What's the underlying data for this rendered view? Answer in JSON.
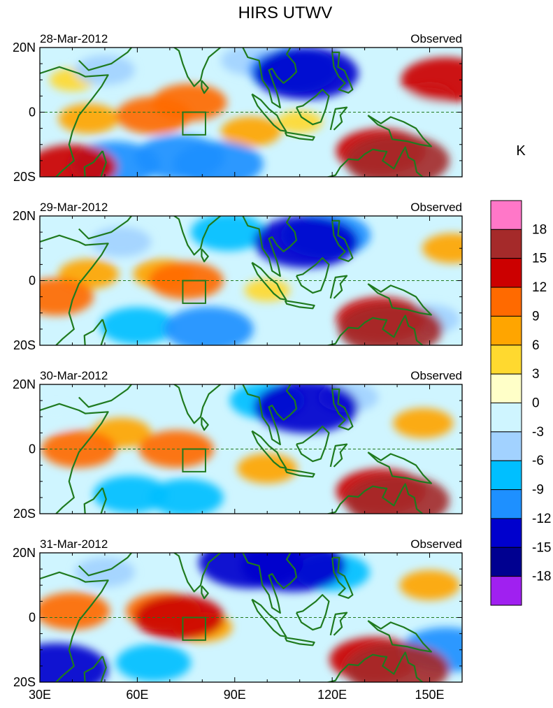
{
  "chart_data": {
    "type": "heatmap",
    "title": "HIRS UTWV",
    "colorbar": {
      "unit": "K",
      "levels": [
        "18",
        "15",
        "12",
        "9",
        "6",
        "3",
        "0",
        "-3",
        "-6",
        "-9",
        "-12",
        "-15",
        "-18"
      ],
      "colors": [
        "#ff77c8",
        "#a52a2a",
        "#cc0000",
        "#ff6a00",
        "#ffa500",
        "#ffd92f",
        "#ffffc8",
        "#cff5ff",
        "#a2d2ff",
        "#00bfff",
        "#1e90ff",
        "#0000cd",
        "#000090",
        "#a020f0"
      ]
    },
    "x_axis": {
      "range": [
        30,
        160
      ],
      "ticks": [
        30,
        60,
        90,
        120,
        150
      ],
      "tick_labels": [
        "30E",
        "60E",
        "90E",
        "120E",
        "150E"
      ]
    },
    "y_axis": {
      "range": [
        -20,
        20
      ],
      "ticks": [
        20,
        0,
        -20
      ],
      "tick_labels": [
        "20N",
        "0",
        "20S"
      ]
    },
    "box_region": {
      "lon": [
        74,
        81
      ],
      "lat": [
        -7,
        0
      ]
    },
    "panels": [
      {
        "date": "28-Mar-2012",
        "label": "Observed",
        "features": [
          {
            "lon": 65,
            "lat": -1,
            "value": 9
          },
          {
            "lon": 76,
            "lat": 3,
            "value": 9
          },
          {
            "lon": 45,
            "lat": -2,
            "value": 6
          },
          {
            "lon": 95,
            "lat": -6,
            "value": 6
          },
          {
            "lon": 40,
            "lat": 10,
            "value": 3
          },
          {
            "lon": 110,
            "lat": -3,
            "value": 3
          },
          {
            "lon": 140,
            "lat": -15,
            "value": 15
          },
          {
            "lon": 135,
            "lat": -12,
            "value": 12
          },
          {
            "lon": 155,
            "lat": 10,
            "value": 12
          },
          {
            "lon": 112,
            "lat": 12,
            "value": -15
          },
          {
            "lon": 108,
            "lat": 13,
            "value": -12
          },
          {
            "lon": 85,
            "lat": -16,
            "value": -12
          },
          {
            "lon": 73,
            "lat": -14,
            "value": -12
          },
          {
            "lon": 53,
            "lat": -16,
            "value": -12
          },
          {
            "lon": 40,
            "lat": -17,
            "value": 12
          },
          {
            "lon": 50,
            "lat": 13,
            "value": -6
          },
          {
            "lon": 95,
            "lat": 16,
            "value": -6
          },
          {
            "lon": 150,
            "lat": 5,
            "value": -3
          }
        ]
      },
      {
        "date": "29-Mar-2012",
        "label": "Observed",
        "features": [
          {
            "lon": 35,
            "lat": -5,
            "value": 9
          },
          {
            "lon": 75,
            "lat": 0,
            "value": 9
          },
          {
            "lon": 45,
            "lat": 2,
            "value": 6
          },
          {
            "lon": 68,
            "lat": 2,
            "value": 6
          },
          {
            "lon": 100,
            "lat": -3,
            "value": 3
          },
          {
            "lon": 157,
            "lat": 10,
            "value": 6
          },
          {
            "lon": 138,
            "lat": -15,
            "value": 15
          },
          {
            "lon": 135,
            "lat": -12,
            "value": 12
          },
          {
            "lon": 112,
            "lat": 12,
            "value": -15
          },
          {
            "lon": 118,
            "lat": 14,
            "value": -12
          },
          {
            "lon": 82,
            "lat": -15,
            "value": -12
          },
          {
            "lon": 60,
            "lat": -14,
            "value": -9
          },
          {
            "lon": 88,
            "lat": 15,
            "value": -9
          },
          {
            "lon": 150,
            "lat": -12,
            "value": -6
          },
          {
            "lon": 55,
            "lat": 12,
            "value": -6
          }
        ]
      },
      {
        "date": "30-Mar-2012",
        "label": "Observed",
        "features": [
          {
            "lon": 42,
            "lat": 0,
            "value": 9
          },
          {
            "lon": 72,
            "lat": 0,
            "value": 9
          },
          {
            "lon": 55,
            "lat": 5,
            "value": 6
          },
          {
            "lon": 100,
            "lat": -6,
            "value": 6
          },
          {
            "lon": 148,
            "lat": 8,
            "value": 6
          },
          {
            "lon": 140,
            "lat": -16,
            "value": 15
          },
          {
            "lon": 135,
            "lat": -13,
            "value": 12
          },
          {
            "lon": 112,
            "lat": 13,
            "value": -15
          },
          {
            "lon": 100,
            "lat": 15,
            "value": -9
          },
          {
            "lon": 75,
            "lat": -15,
            "value": -9
          },
          {
            "lon": 58,
            "lat": -14,
            "value": -9
          },
          {
            "lon": 125,
            "lat": 16,
            "value": -6
          },
          {
            "lon": 35,
            "lat": 10,
            "value": -3
          }
        ]
      },
      {
        "date": "31-Mar-2012",
        "label": "Observed",
        "features": [
          {
            "lon": 73,
            "lat": 0,
            "value": 12
          },
          {
            "lon": 68,
            "lat": 2,
            "value": 9
          },
          {
            "lon": 40,
            "lat": 2,
            "value": 9
          },
          {
            "lon": 80,
            "lat": -3,
            "value": 6
          },
          {
            "lon": 150,
            "lat": 10,
            "value": 6
          },
          {
            "lon": 140,
            "lat": -16,
            "value": 15
          },
          {
            "lon": 133,
            "lat": -13,
            "value": 12
          },
          {
            "lon": 95,
            "lat": 17,
            "value": -15
          },
          {
            "lon": 108,
            "lat": 16,
            "value": -15
          },
          {
            "lon": 35,
            "lat": -16,
            "value": -15
          },
          {
            "lon": 65,
            "lat": -14,
            "value": -9
          },
          {
            "lon": 155,
            "lat": -10,
            "value": -12
          },
          {
            "lon": 120,
            "lat": 14,
            "value": -9
          },
          {
            "lon": 50,
            "lat": 14,
            "value": -6
          }
        ]
      }
    ]
  }
}
